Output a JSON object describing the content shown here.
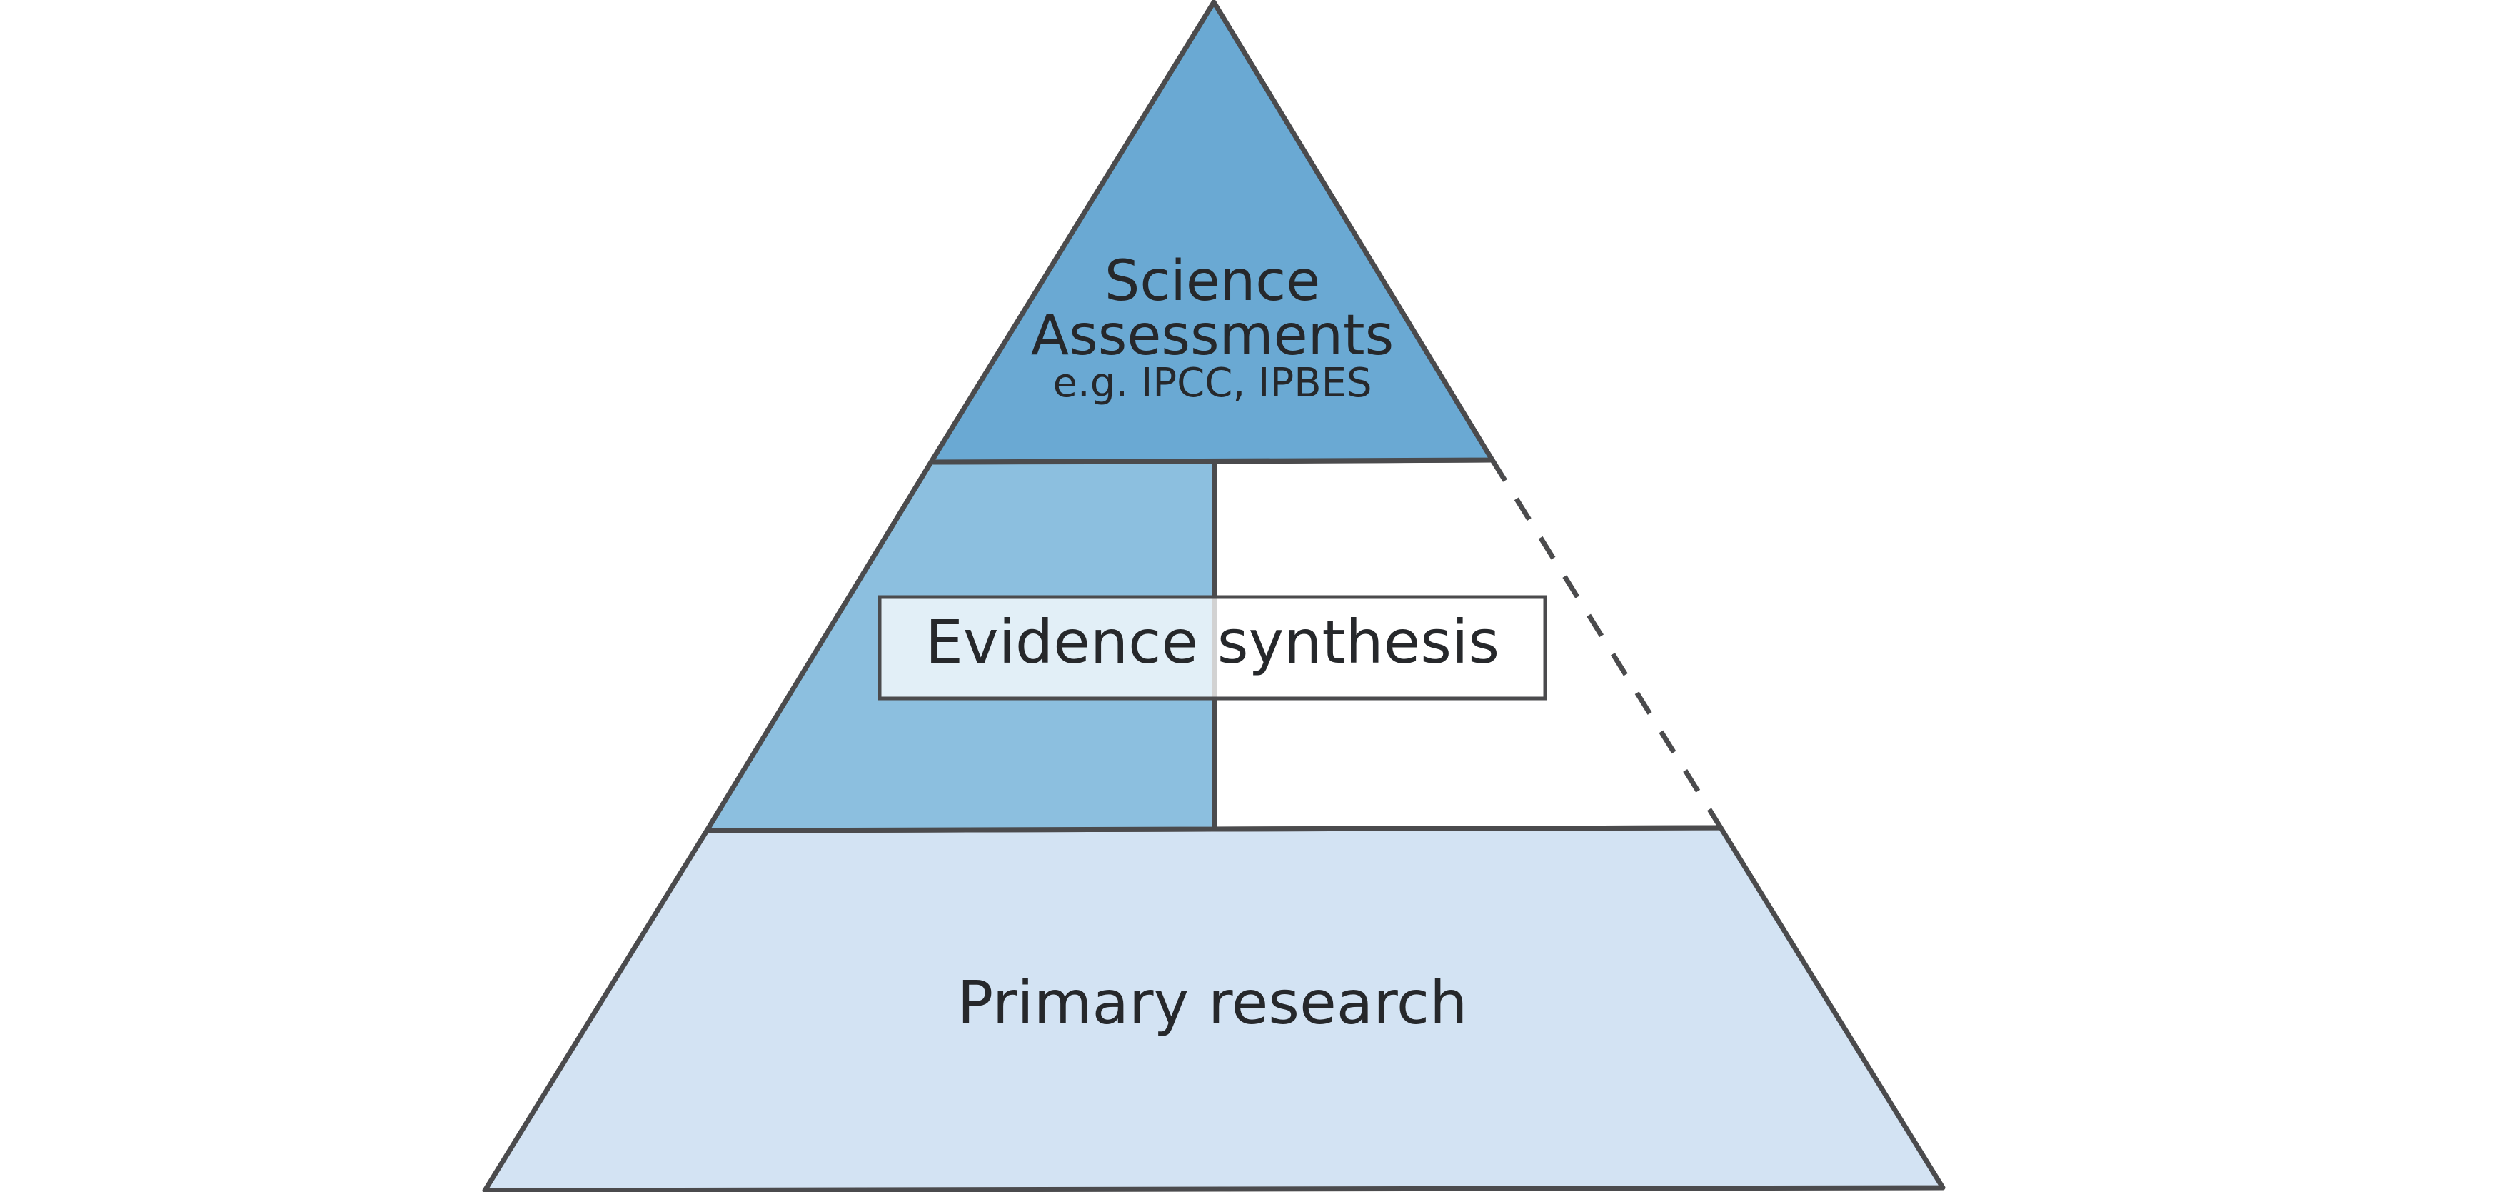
{
  "diagram": {
    "top_tier": {
      "title_line1": "Science",
      "title_line2": "Assessments",
      "examples": "e.g. IPCC, IPBES"
    },
    "middle_tier": {
      "label": "Evidence synthesis"
    },
    "bottom_tier": {
      "label": "Primary research"
    }
  },
  "colors": {
    "top_fill": "#6aa9d3",
    "middle_fill": "#8cbfdf",
    "bottom_fill": "#d3e3f3",
    "label_box_fill": "#ffffff",
    "outline": "#4b4b4d",
    "text": "#26282b"
  }
}
